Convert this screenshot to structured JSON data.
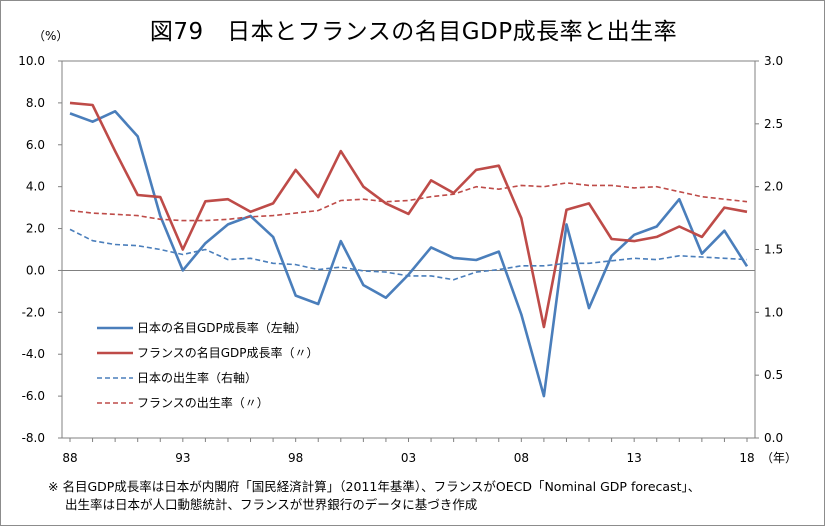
{
  "title": "図79　日本とフランスの名目GDP成長率と出生率",
  "unit_left": "（%）",
  "x_unit": "（年）",
  "notes": [
    "※ 名目GDP成長率は日本が内閣府「国民経済計算」（2011年基準）、フランスがOECD「Nominal GDP forecast」、",
    "出生率は日本が人口動態統計、フランスが世界銀行のデータに基づき作成"
  ],
  "colors": {
    "blue": "#4a7ebb",
    "red": "#be4b48",
    "axis": "#808080"
  },
  "chart_data": {
    "type": "line",
    "x": [
      1988,
      1989,
      1990,
      1991,
      1992,
      1993,
      1994,
      1995,
      1996,
      1997,
      1998,
      1999,
      2000,
      2001,
      2002,
      2003,
      2004,
      2005,
      2006,
      2007,
      2008,
      2009,
      2010,
      2011,
      2012,
      2013,
      2014,
      2015,
      2016,
      2017,
      2018
    ],
    "x_tick_values": [
      1988,
      1993,
      1998,
      2003,
      2008,
      2013,
      2018
    ],
    "x_tick_labels": [
      "88",
      "93",
      "98",
      "03",
      "08",
      "13",
      "18"
    ],
    "y_left": {
      "min": -8,
      "max": 10,
      "ticks": [
        "10.0",
        "8.0",
        "6.0",
        "4.0",
        "2.0",
        "0.0",
        "-2.0",
        "-4.0",
        "-6.0",
        "-8.0"
      ]
    },
    "y_right": {
      "min": 0,
      "max": 3,
      "ticks": [
        "3.0",
        "2.5",
        "2.0",
        "1.5",
        "1.0",
        "0.5",
        "0.0"
      ]
    },
    "grid": false,
    "legend_position": "lower-left",
    "series": [
      {
        "name": "日本の名目GDP成長率（左軸）",
        "axis": "left",
        "style": "solid",
        "color": "#4a7ebb",
        "values": [
          7.5,
          7.1,
          7.6,
          6.4,
          2.6,
          0.0,
          1.3,
          2.2,
          2.6,
          1.6,
          -1.2,
          -1.6,
          1.4,
          -0.7,
          -1.3,
          -0.2,
          1.1,
          0.6,
          0.5,
          0.9,
          -2.1,
          -6.0,
          2.2,
          -1.8,
          0.7,
          1.7,
          2.1,
          3.4,
          0.8,
          1.9,
          0.2
        ]
      },
      {
        "name": "フランスの名目GDP成長率（〃）",
        "axis": "left",
        "style": "solid",
        "color": "#be4b48",
        "values": [
          8.0,
          7.9,
          5.7,
          3.6,
          3.5,
          1.0,
          3.3,
          3.4,
          2.8,
          3.2,
          4.8,
          3.5,
          5.7,
          4.0,
          3.2,
          2.7,
          4.3,
          3.7,
          4.8,
          5.0,
          2.5,
          -2.7,
          2.9,
          3.2,
          1.5,
          1.4,
          1.6,
          2.1,
          1.6,
          3.0,
          2.8
        ]
      },
      {
        "name": "日本の出生率（右軸）",
        "axis": "right",
        "style": "dashed",
        "color": "#4a7ebb",
        "values": [
          1.66,
          1.57,
          1.54,
          1.53,
          1.5,
          1.46,
          1.5,
          1.42,
          1.43,
          1.39,
          1.38,
          1.34,
          1.36,
          1.33,
          1.32,
          1.29,
          1.29,
          1.26,
          1.32,
          1.34,
          1.37,
          1.37,
          1.39,
          1.39,
          1.41,
          1.43,
          1.42,
          1.45,
          1.44,
          1.43,
          1.42
        ]
      },
      {
        "name": "フランスの出生率（〃）",
        "axis": "right",
        "style": "dashed",
        "color": "#be4b48",
        "values": [
          1.81,
          1.79,
          1.78,
          1.77,
          1.74,
          1.73,
          1.73,
          1.74,
          1.76,
          1.77,
          1.79,
          1.81,
          1.89,
          1.9,
          1.88,
          1.89,
          1.92,
          1.94,
          2.0,
          1.98,
          2.01,
          2.0,
          2.03,
          2.01,
          2.01,
          1.99,
          2.0,
          1.96,
          1.92,
          1.9,
          1.88
        ]
      }
    ]
  }
}
